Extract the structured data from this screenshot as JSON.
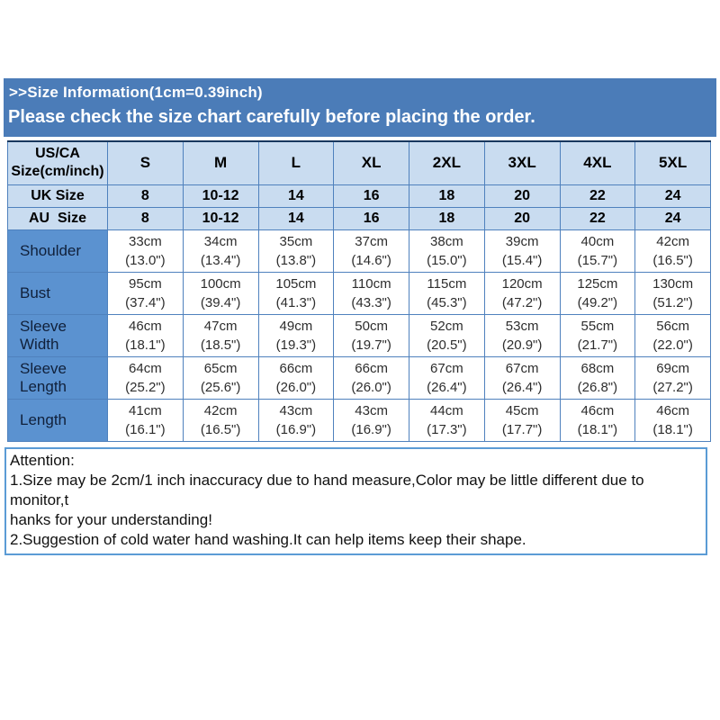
{
  "banner": {
    "line1": ">>Size Information(1cm=0.39inch)",
    "line2": "Please check the size chart carefully before placing the order."
  },
  "size_table": {
    "corner_header": {
      "line1": "US/CA",
      "line2": "Size(cm/inch)"
    },
    "size_columns": [
      "S",
      "M",
      "L",
      "XL",
      "2XL",
      "3XL",
      "4XL",
      "5XL"
    ],
    "region_size_rows": [
      {
        "label": "UK Size",
        "values": [
          "8",
          "10-12",
          "14",
          "16",
          "18",
          "20",
          "22",
          "24"
        ]
      },
      {
        "label": "AU  Size",
        "values": [
          "8",
          "10-12",
          "14",
          "16",
          "18",
          "20",
          "22",
          "24"
        ]
      }
    ],
    "measurement_rows": [
      {
        "label": "Shoulder",
        "values_cm": [
          "33cm",
          "34cm",
          "35cm",
          "37cm",
          "38cm",
          "39cm",
          "40cm",
          "42cm"
        ],
        "values_inch": [
          "(13.0\")",
          "(13.4\")",
          "(13.8\")",
          "(14.6\")",
          "(15.0\")",
          "(15.4\")",
          "(15.7\")",
          "(16.5\")"
        ]
      },
      {
        "label": "Bust",
        "values_cm": [
          "95cm",
          "100cm",
          "105cm",
          "110cm",
          "115cm",
          "120cm",
          "125cm",
          "130cm"
        ],
        "values_inch": [
          "(37.4\")",
          "(39.4\")",
          "(41.3\")",
          "(43.3\")",
          "(45.3\")",
          "(47.2\")",
          "(49.2\")",
          "(51.2\")"
        ]
      },
      {
        "label": "Sleeve Width",
        "values_cm": [
          "46cm",
          "47cm",
          "49cm",
          "50cm",
          "52cm",
          "53cm",
          "55cm",
          "56cm"
        ],
        "values_inch": [
          "(18.1\")",
          "(18.5\")",
          "(19.3\")",
          "(19.7\")",
          "(20.5\")",
          "(20.9\")",
          "(21.7\")",
          "(22.0\")"
        ]
      },
      {
        "label": "Sleeve Length",
        "values_cm": [
          "64cm",
          "65cm",
          "66cm",
          "66cm",
          "67cm",
          "67cm",
          "68cm",
          "69cm"
        ],
        "values_inch": [
          "(25.2\")",
          "(25.6\")",
          "(26.0\")",
          "(26.0\")",
          "(26.4\")",
          "(26.4\")",
          "(26.8\")",
          "(27.2\")"
        ]
      },
      {
        "label": "Length",
        "values_cm": [
          "41cm",
          "42cm",
          "43cm",
          "43cm",
          "44cm",
          "45cm",
          "46cm",
          "46cm"
        ],
        "values_inch": [
          "(16.1\")",
          "(16.5\")",
          "(16.9\")",
          "(16.9\")",
          "(17.3\")",
          "(17.7\")",
          "(18.1\")",
          "(18.1\")"
        ]
      }
    ]
  },
  "attention": {
    "title": "Attention:",
    "lines": [
      "1.Size may be 2cm/1 inch inaccuracy due to hand measure,Color may be little different due to monitor,t",
      "hanks for your understanding!",
      "2.Suggestion of cold water hand washing.It can help items keep their shape."
    ]
  },
  "colors": {
    "banner_blue": "#4b7cb8",
    "light_blue_cell": "#c9dcf0",
    "label_blue_cell": "#5b92d0",
    "border_blue": "#4f81bd",
    "table_top_border": "#17375e",
    "attention_border": "#5b9bd5"
  }
}
